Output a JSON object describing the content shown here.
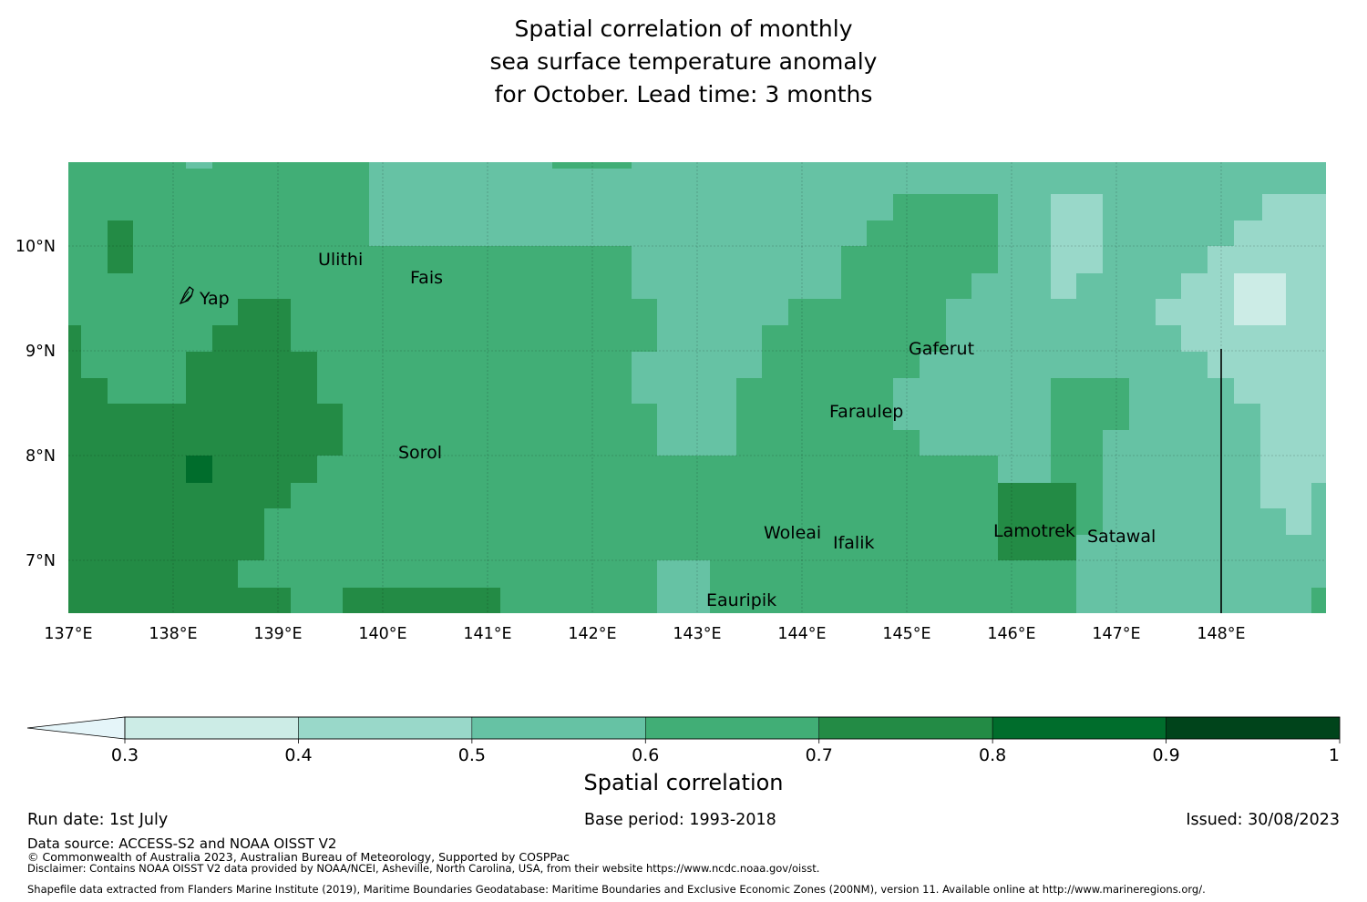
{
  "title": {
    "line1": "Spatial correlation of monthly",
    "line2": "sea surface temperature anomaly",
    "line3": "for October. Lead time: 3 months"
  },
  "map": {
    "lon_range": [
      137,
      149
    ],
    "lat_range": [
      6.5,
      10.8
    ],
    "lon_ticks": [
      "137°E",
      "138°E",
      "139°E",
      "140°E",
      "141°E",
      "142°E",
      "143°E",
      "144°E",
      "145°E",
      "146°E",
      "147°E",
      "148°E"
    ],
    "lat_ticks": [
      "10°N",
      "9°N",
      "8°N",
      "7°N"
    ],
    "place_labels": [
      "Yap",
      "Ulithi",
      "Fais",
      "Gaferut",
      "Faraulep",
      "Sorol",
      "Woleai",
      "Ifalik",
      "Lamotrek",
      "Satawal",
      "Eauripik"
    ],
    "correlation_grid_note": "cells from 0.3-0.9 bins",
    "boundary_line_lon": 148.0
  },
  "colorbar": {
    "label": "Spatial correlation",
    "ticks": [
      "0.3",
      "0.4",
      "0.5",
      "0.6",
      "0.7",
      "0.8",
      "0.9",
      "1"
    ],
    "colors": [
      "#e5f5f9",
      "#ccece6",
      "#99d8c9",
      "#66c2a4",
      "#41ae76",
      "#238b45",
      "#006d2c",
      "#00441b"
    ]
  },
  "footer": {
    "run_date": "Run date: 1st July",
    "base_period": "Base period: 1993-2018",
    "issued": "Issued: 30/08/2023",
    "data_source": "Data source: ACCESS-S2 and NOAA OISST V2",
    "copyright": "© Commonwealth of Australia 2023, Australian Bureau of Meteorology, Supported by COSPPac",
    "disclaimer": "Disclaimer: Contains NOAA OISST V2 data provided by NOAA/NCEI, Asheville, North Carolina, USA, from their website https://www.ncdc.noaa.gov/oisst.",
    "shapefile": "Shapefile data extracted from Flanders Marine Institute (2019), Maritime Boundaries Geodatabase: Maritime Boundaries and Exclusive Economic Zones (200NM), version 11. Available online at http://www.marineregions.org/."
  }
}
